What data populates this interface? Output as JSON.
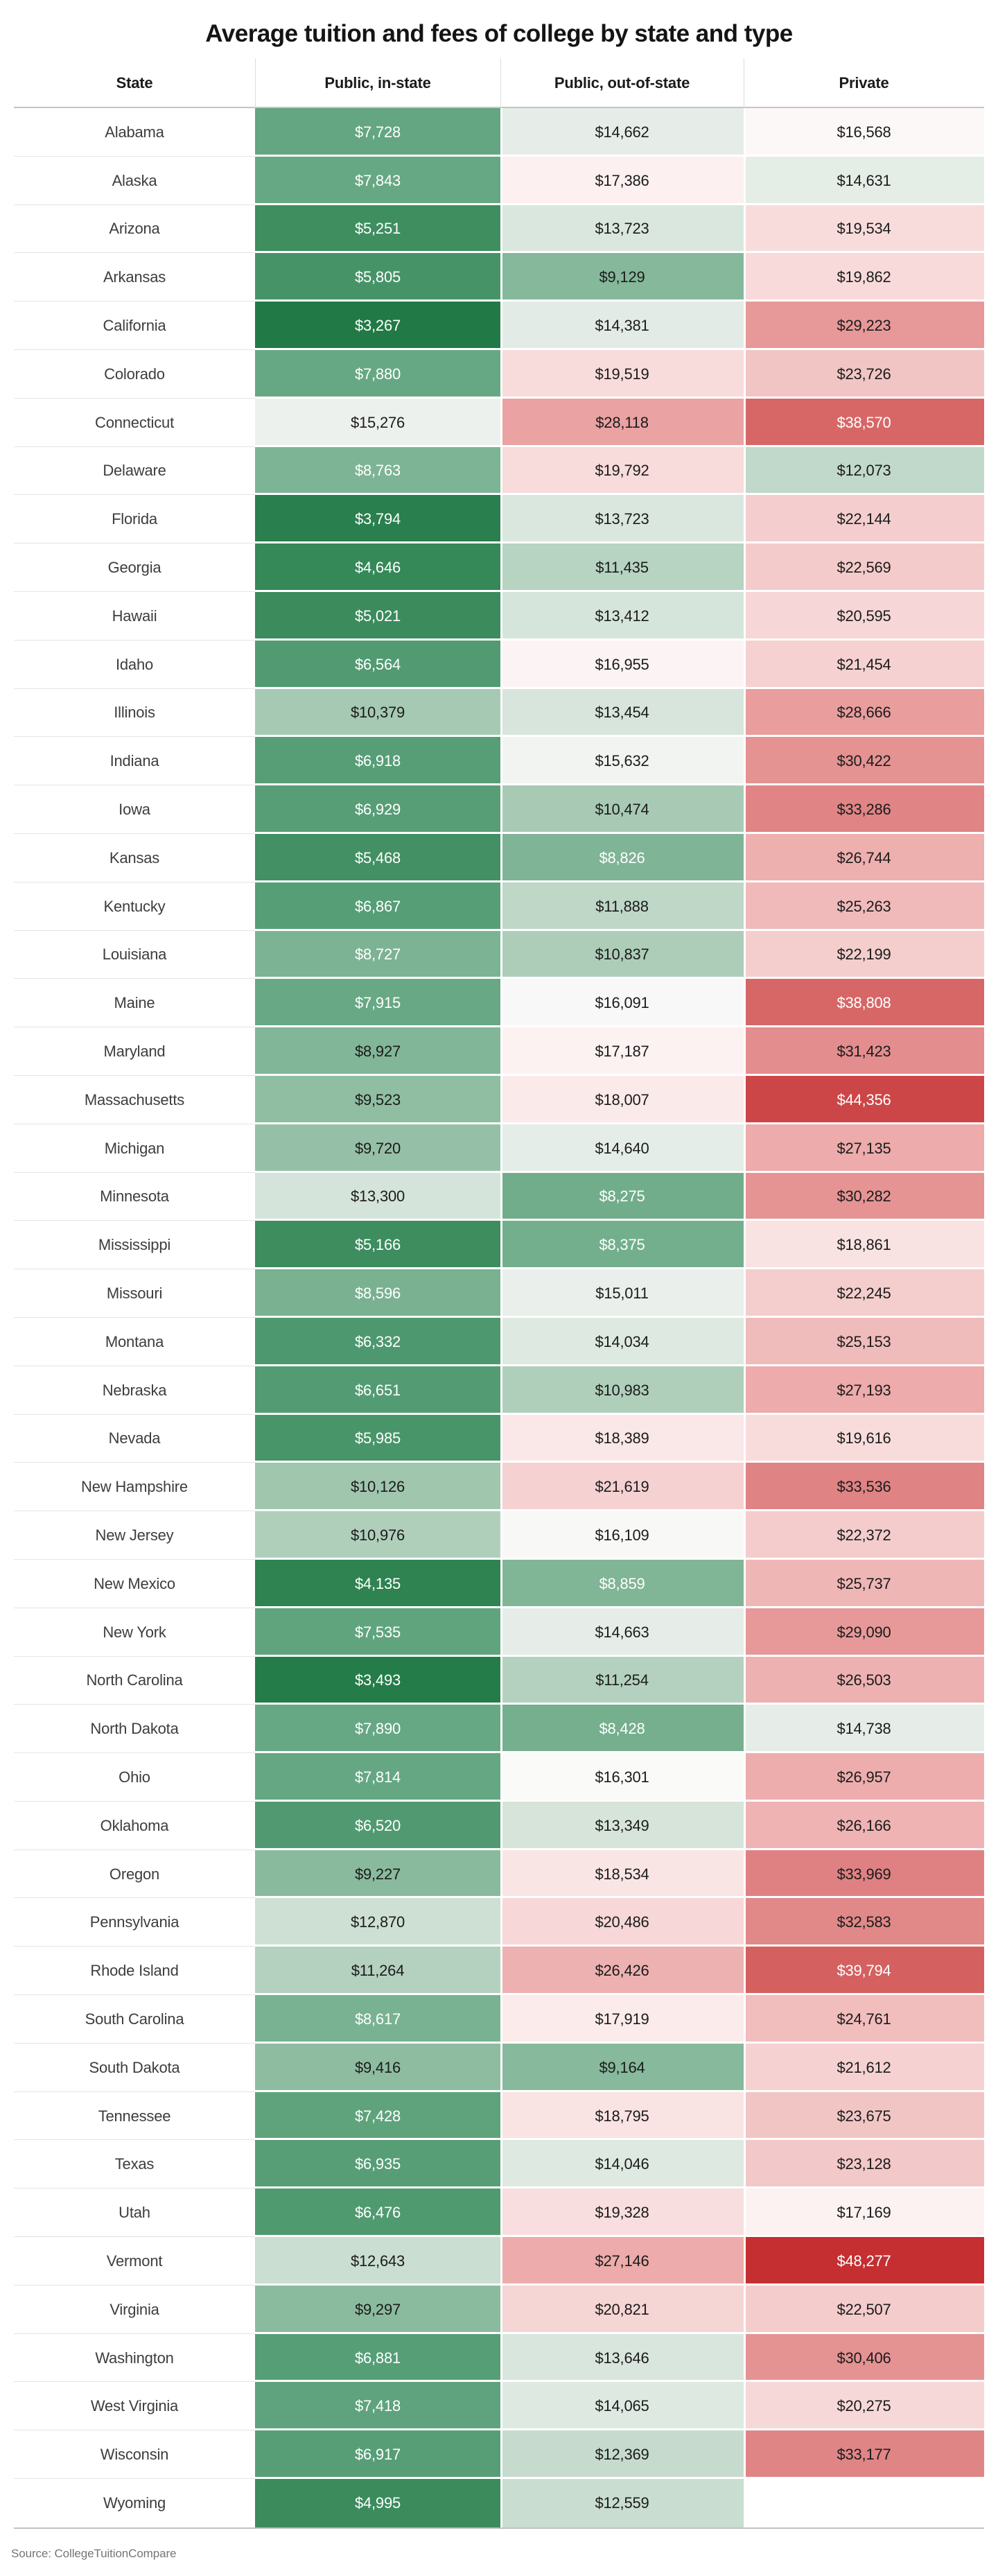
{
  "title": "Average tuition and fees of college by state and type",
  "source_note": "Source: CollegeTuitionCompare",
  "chart_data": {
    "type": "heatmap",
    "title": "Average tuition and fees of college by state and type",
    "columns": [
      "State",
      "Public, in-state",
      "Public, out-of-state",
      "Private"
    ],
    "value_prefix": "$",
    "legend_position": "none",
    "grid": "off",
    "value_range": [
      3267,
      48277
    ],
    "color_scale": {
      "description": "diverging green-white-red over dollar value, piecewise-linear stops",
      "stops": [
        [
          3267,
          "#217a46"
        ],
        [
          7728,
          "#63a681"
        ],
        [
          10379,
          "#a6c9b3"
        ],
        [
          13300,
          "#d5e4da"
        ],
        [
          15276,
          "#edf1ee"
        ],
        [
          16450,
          "#fcfbfb"
        ],
        [
          16568,
          "#fdf8f8"
        ],
        [
          19534,
          "#f8dcdc"
        ],
        [
          23726,
          "#f2c5c5"
        ],
        [
          26744,
          "#eeafaf"
        ],
        [
          29223,
          "#e79898"
        ],
        [
          33969,
          "#df8182"
        ],
        [
          38570,
          "#d76767"
        ],
        [
          44356,
          "#cc4647"
        ],
        [
          48277,
          "#c52f31"
        ]
      ],
      "white_text_green_max": 8890,
      "white_text_red_min": 38500,
      "dark_text_color": "#1b1b1b",
      "light_text_color": "#ffffff"
    },
    "rows": [
      {
        "state": "Alabama",
        "values": [
          7728,
          14662,
          16568
        ]
      },
      {
        "state": "Alaska",
        "values": [
          7843,
          17386,
          14631
        ]
      },
      {
        "state": "Arizona",
        "values": [
          5251,
          13723,
          19534
        ]
      },
      {
        "state": "Arkansas",
        "values": [
          5805,
          9129,
          19862
        ]
      },
      {
        "state": "California",
        "values": [
          3267,
          14381,
          29223
        ]
      },
      {
        "state": "Colorado",
        "values": [
          7880,
          19519,
          23726
        ]
      },
      {
        "state": "Connecticut",
        "values": [
          15276,
          28118,
          38570
        ]
      },
      {
        "state": "Delaware",
        "values": [
          8763,
          19792,
          12073
        ]
      },
      {
        "state": "Florida",
        "values": [
          3794,
          13723,
          22144
        ]
      },
      {
        "state": "Georgia",
        "values": [
          4646,
          11435,
          22569
        ]
      },
      {
        "state": "Hawaii",
        "values": [
          5021,
          13412,
          20595
        ]
      },
      {
        "state": "Idaho",
        "values": [
          6564,
          16955,
          21454
        ]
      },
      {
        "state": "Illinois",
        "values": [
          10379,
          13454,
          28666
        ]
      },
      {
        "state": "Indiana",
        "values": [
          6918,
          15632,
          30422
        ]
      },
      {
        "state": "Iowa",
        "values": [
          6929,
          10474,
          33286
        ]
      },
      {
        "state": "Kansas",
        "values": [
          5468,
          8826,
          26744
        ]
      },
      {
        "state": "Kentucky",
        "values": [
          6867,
          11888,
          25263
        ]
      },
      {
        "state": "Louisiana",
        "values": [
          8727,
          10837,
          22199
        ]
      },
      {
        "state": "Maine",
        "values": [
          7915,
          16091,
          38808
        ]
      },
      {
        "state": "Maryland",
        "values": [
          8927,
          17187,
          31423
        ]
      },
      {
        "state": "Massachusetts",
        "values": [
          9523,
          18007,
          44356
        ]
      },
      {
        "state": "Michigan",
        "values": [
          9720,
          14640,
          27135
        ]
      },
      {
        "state": "Minnesota",
        "values": [
          13300,
          8275,
          30282
        ]
      },
      {
        "state": "Mississippi",
        "values": [
          5166,
          8375,
          18861
        ]
      },
      {
        "state": "Missouri",
        "values": [
          8596,
          15011,
          22245
        ]
      },
      {
        "state": "Montana",
        "values": [
          6332,
          14034,
          25153
        ]
      },
      {
        "state": "Nebraska",
        "values": [
          6651,
          10983,
          27193
        ]
      },
      {
        "state": "Nevada",
        "values": [
          5985,
          18389,
          19616
        ]
      },
      {
        "state": "New Hampshire",
        "values": [
          10126,
          21619,
          33536
        ]
      },
      {
        "state": "New Jersey",
        "values": [
          10976,
          16109,
          22372
        ]
      },
      {
        "state": "New Mexico",
        "values": [
          4135,
          8859,
          25737
        ]
      },
      {
        "state": "New York",
        "values": [
          7535,
          14663,
          29090
        ]
      },
      {
        "state": "North Carolina",
        "values": [
          3493,
          11254,
          26503
        ]
      },
      {
        "state": "North Dakota",
        "values": [
          7890,
          8428,
          14738
        ]
      },
      {
        "state": "Ohio",
        "values": [
          7814,
          16301,
          26957
        ]
      },
      {
        "state": "Oklahoma",
        "values": [
          6520,
          13349,
          26166
        ]
      },
      {
        "state": "Oregon",
        "values": [
          9227,
          18534,
          33969
        ]
      },
      {
        "state": "Pennsylvania",
        "values": [
          12870,
          20486,
          32583
        ]
      },
      {
        "state": "Rhode Island",
        "values": [
          11264,
          26426,
          39794
        ]
      },
      {
        "state": "South Carolina",
        "values": [
          8617,
          17919,
          24761
        ]
      },
      {
        "state": "South Dakota",
        "values": [
          9416,
          9164,
          21612
        ]
      },
      {
        "state": "Tennessee",
        "values": [
          7428,
          18795,
          23675
        ]
      },
      {
        "state": "Texas",
        "values": [
          6935,
          14046,
          23128
        ]
      },
      {
        "state": "Utah",
        "values": [
          6476,
          19328,
          17169
        ]
      },
      {
        "state": "Vermont",
        "values": [
          12643,
          27146,
          48277
        ]
      },
      {
        "state": "Virginia",
        "values": [
          9297,
          20821,
          22507
        ]
      },
      {
        "state": "Washington",
        "values": [
          6881,
          13646,
          30406
        ]
      },
      {
        "state": "West Virginia",
        "values": [
          7418,
          14065,
          20275
        ]
      },
      {
        "state": "Wisconsin",
        "values": [
          6917,
          12369,
          33177
        ]
      },
      {
        "state": "Wyoming",
        "values": [
          4995,
          12559,
          null
        ]
      }
    ]
  }
}
